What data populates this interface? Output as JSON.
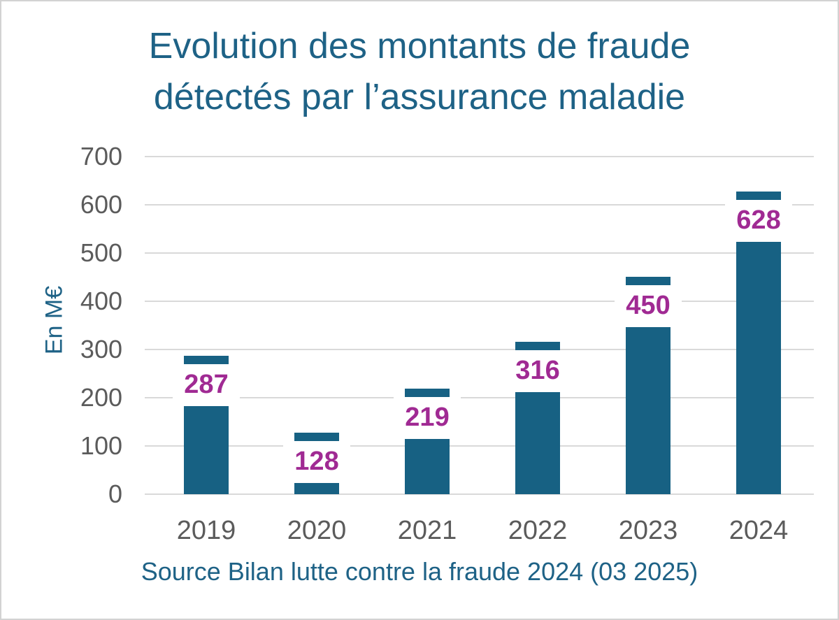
{
  "chart_data": {
    "type": "bar",
    "title": "Evolution des montants de fraude détectés par l’assurance maladie",
    "title_lines": [
      "Evolution des montants de fraude",
      "détectés par l’assurance maladie"
    ],
    "categories": [
      "2019",
      "2020",
      "2021",
      "2022",
      "2023",
      "2024"
    ],
    "values": [
      287,
      128,
      219,
      316,
      450,
      628
    ],
    "ylabel": "En M€",
    "xlabel": "",
    "ylim": [
      0,
      700
    ],
    "yticks": [
      0,
      100,
      200,
      300,
      400,
      500,
      600,
      700
    ],
    "grid": true,
    "legend": "none",
    "source": "Source Bilan lutte contre la fraude 2024 (03 2025)",
    "colors": {
      "bar": "#176183",
      "value_label": "#A02A93",
      "title_text": "#1E6286",
      "axis_text": "#5B5B5B",
      "gridline": "#D9D9D9",
      "source_text": "#1E6286",
      "background": "#FFFFFF"
    }
  }
}
